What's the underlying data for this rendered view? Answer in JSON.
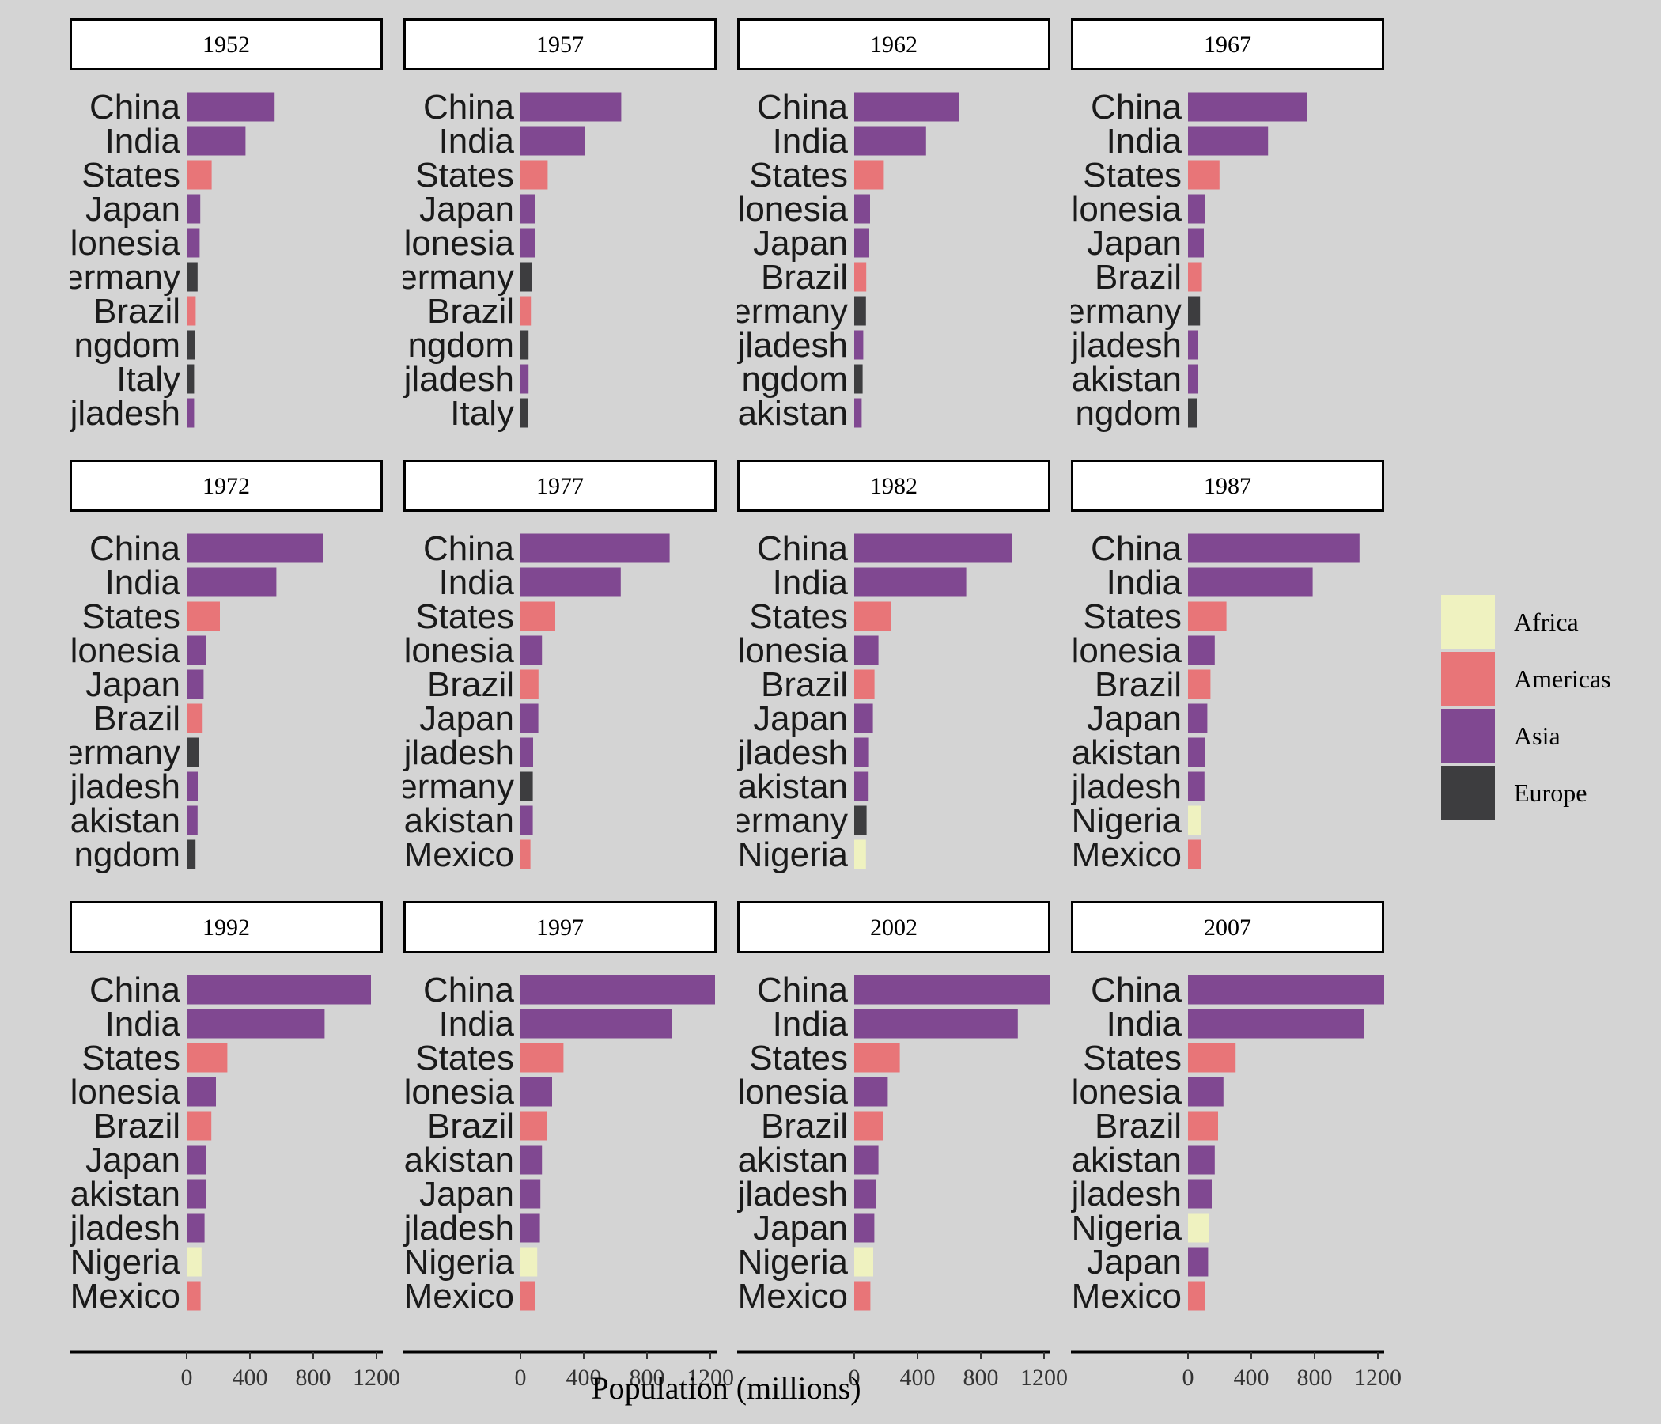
{
  "chart_data": {
    "type": "bar",
    "orientation": "horizontal",
    "facet_by": "year",
    "xlabel": "Population (millions)",
    "xlim": [
      0,
      1400
    ],
    "xticks": [
      0,
      400,
      800,
      1200
    ],
    "xtick_labels": [
      "0",
      "400",
      "800",
      "1200"
    ],
    "legend_position": "right",
    "colors": {
      "Africa": "#eff2c0",
      "Americas": "#e87578",
      "Asia": "#804891",
      "Europe": "#3d3d3f"
    },
    "legend": [
      "Africa",
      "Americas",
      "Asia",
      "Europe"
    ],
    "facets": [
      {
        "year": "1952",
        "bars": [
          {
            "label": "China",
            "continent": "Asia",
            "value": 556
          },
          {
            "label": "India",
            "continent": "Asia",
            "value": 372
          },
          {
            "label": "States",
            "continent": "Americas",
            "value": 158
          },
          {
            "label": "Japan",
            "continent": "Asia",
            "value": 86
          },
          {
            "label": "lonesia",
            "continent": "Asia",
            "value": 82
          },
          {
            "label": "ermany",
            "continent": "Europe",
            "value": 69
          },
          {
            "label": "Brazil",
            "continent": "Americas",
            "value": 57
          },
          {
            "label": "ngdom",
            "continent": "Europe",
            "value": 50
          },
          {
            "label": "Italy",
            "continent": "Europe",
            "value": 47
          },
          {
            "label": "jladesh",
            "continent": "Asia",
            "value": 47
          }
        ]
      },
      {
        "year": "1957",
        "bars": [
          {
            "label": "China",
            "continent": "Asia",
            "value": 637
          },
          {
            "label": "India",
            "continent": "Asia",
            "value": 409
          },
          {
            "label": "States",
            "continent": "Americas",
            "value": 172
          },
          {
            "label": "Japan",
            "continent": "Asia",
            "value": 91
          },
          {
            "label": "lonesia",
            "continent": "Asia",
            "value": 90
          },
          {
            "label": "ermany",
            "continent": "Europe",
            "value": 71
          },
          {
            "label": "Brazil",
            "continent": "Americas",
            "value": 66
          },
          {
            "label": "ngdom",
            "continent": "Europe",
            "value": 51
          },
          {
            "label": "jladesh",
            "continent": "Asia",
            "value": 51
          },
          {
            "label": "Italy",
            "continent": "Europe",
            "value": 49
          }
        ]
      },
      {
        "year": "1962",
        "bars": [
          {
            "label": "China",
            "continent": "Asia",
            "value": 665
          },
          {
            "label": "India",
            "continent": "Asia",
            "value": 454
          },
          {
            "label": "States",
            "continent": "Americas",
            "value": 187
          },
          {
            "label": "lonesia",
            "continent": "Asia",
            "value": 100
          },
          {
            "label": "Japan",
            "continent": "Asia",
            "value": 95
          },
          {
            "label": "Brazil",
            "continent": "Americas",
            "value": 76
          },
          {
            "label": "ermany",
            "continent": "Europe",
            "value": 74
          },
          {
            "label": "jladesh",
            "continent": "Asia",
            "value": 57
          },
          {
            "label": "ngdom",
            "continent": "Europe",
            "value": 53
          },
          {
            "label": "akistan",
            "continent": "Asia",
            "value": 47
          }
        ]
      },
      {
        "year": "1967",
        "bars": [
          {
            "label": "China",
            "continent": "Asia",
            "value": 754
          },
          {
            "label": "India",
            "continent": "Asia",
            "value": 506
          },
          {
            "label": "States",
            "continent": "Americas",
            "value": 199
          },
          {
            "label": "lonesia",
            "continent": "Asia",
            "value": 110
          },
          {
            "label": "Japan",
            "continent": "Asia",
            "value": 100
          },
          {
            "label": "Brazil",
            "continent": "Americas",
            "value": 88
          },
          {
            "label": "ermany",
            "continent": "Europe",
            "value": 76
          },
          {
            "label": "jladesh",
            "continent": "Asia",
            "value": 63
          },
          {
            "label": "akistan",
            "continent": "Asia",
            "value": 60
          },
          {
            "label": "ngdom",
            "continent": "Europe",
            "value": 55
          }
        ]
      },
      {
        "year": "1972",
        "bars": [
          {
            "label": "China",
            "continent": "Asia",
            "value": 862
          },
          {
            "label": "India",
            "continent": "Asia",
            "value": 567
          },
          {
            "label": "States",
            "continent": "Americas",
            "value": 210
          },
          {
            "label": "lonesia",
            "continent": "Asia",
            "value": 121
          },
          {
            "label": "Japan",
            "continent": "Asia",
            "value": 107
          },
          {
            "label": "Brazil",
            "continent": "Americas",
            "value": 101
          },
          {
            "label": "ermany",
            "continent": "Europe",
            "value": 79
          },
          {
            "label": "jladesh",
            "continent": "Asia",
            "value": 70
          },
          {
            "label": "akistan",
            "continent": "Asia",
            "value": 69
          },
          {
            "label": "ngdom",
            "continent": "Europe",
            "value": 56
          }
        ]
      },
      {
        "year": "1977",
        "bars": [
          {
            "label": "China",
            "continent": "Asia",
            "value": 943
          },
          {
            "label": "India",
            "continent": "Asia",
            "value": 634
          },
          {
            "label": "States",
            "continent": "Americas",
            "value": 220
          },
          {
            "label": "lonesia",
            "continent": "Asia",
            "value": 136
          },
          {
            "label": "Brazil",
            "continent": "Americas",
            "value": 114
          },
          {
            "label": "Japan",
            "continent": "Asia",
            "value": 113
          },
          {
            "label": "jladesh",
            "continent": "Asia",
            "value": 80
          },
          {
            "label": "ermany",
            "continent": "Europe",
            "value": 78
          },
          {
            "label": "akistan",
            "continent": "Asia",
            "value": 78
          },
          {
            "label": "Mexico",
            "continent": "Americas",
            "value": 63
          }
        ]
      },
      {
        "year": "1982",
        "bars": [
          {
            "label": "China",
            "continent": "Asia",
            "value": 1000
          },
          {
            "label": "India",
            "continent": "Asia",
            "value": 708
          },
          {
            "label": "States",
            "continent": "Americas",
            "value": 232
          },
          {
            "label": "lonesia",
            "continent": "Asia",
            "value": 153
          },
          {
            "label": "Brazil",
            "continent": "Americas",
            "value": 128
          },
          {
            "label": "Japan",
            "continent": "Asia",
            "value": 118
          },
          {
            "label": "jladesh",
            "continent": "Asia",
            "value": 93
          },
          {
            "label": "akistan",
            "continent": "Asia",
            "value": 91
          },
          {
            "label": "ermany",
            "continent": "Europe",
            "value": 78
          },
          {
            "label": "Nigeria",
            "continent": "Africa",
            "value": 74
          }
        ]
      },
      {
        "year": "1987",
        "bars": [
          {
            "label": "China",
            "continent": "Asia",
            "value": 1084
          },
          {
            "label": "India",
            "continent": "Asia",
            "value": 788
          },
          {
            "label": "States",
            "continent": "Americas",
            "value": 243
          },
          {
            "label": "lonesia",
            "continent": "Asia",
            "value": 169
          },
          {
            "label": "Brazil",
            "continent": "Americas",
            "value": 142
          },
          {
            "label": "Japan",
            "continent": "Asia",
            "value": 122
          },
          {
            "label": "akistan",
            "continent": "Asia",
            "value": 106
          },
          {
            "label": "jladesh",
            "continent": "Asia",
            "value": 104
          },
          {
            "label": "Nigeria",
            "continent": "Africa",
            "value": 82
          },
          {
            "label": "Mexico",
            "continent": "Americas",
            "value": 80
          }
        ]
      },
      {
        "year": "1992",
        "bars": [
          {
            "label": "China",
            "continent": "Asia",
            "value": 1165
          },
          {
            "label": "India",
            "continent": "Asia",
            "value": 872
          },
          {
            "label": "States",
            "continent": "Americas",
            "value": 257
          },
          {
            "label": "lonesia",
            "continent": "Asia",
            "value": 185
          },
          {
            "label": "Brazil",
            "continent": "Americas",
            "value": 156
          },
          {
            "label": "Japan",
            "continent": "Asia",
            "value": 124
          },
          {
            "label": "akistan",
            "continent": "Asia",
            "value": 120
          },
          {
            "label": "jladesh",
            "continent": "Asia",
            "value": 113
          },
          {
            "label": "Nigeria",
            "continent": "Africa",
            "value": 94
          },
          {
            "label": "Mexico",
            "continent": "Americas",
            "value": 88
          }
        ]
      },
      {
        "year": "1997",
        "bars": [
          {
            "label": "China",
            "continent": "Asia",
            "value": 1230
          },
          {
            "label": "India",
            "continent": "Asia",
            "value": 959
          },
          {
            "label": "States",
            "continent": "Americas",
            "value": 272
          },
          {
            "label": "lonesia",
            "continent": "Asia",
            "value": 200
          },
          {
            "label": "Brazil",
            "continent": "Americas",
            "value": 168
          },
          {
            "label": "akistan",
            "continent": "Asia",
            "value": 136
          },
          {
            "label": "Japan",
            "continent": "Asia",
            "value": 126
          },
          {
            "label": "jladesh",
            "continent": "Asia",
            "value": 123
          },
          {
            "label": "Nigeria",
            "continent": "Africa",
            "value": 106
          },
          {
            "label": "Mexico",
            "continent": "Americas",
            "value": 95
          }
        ]
      },
      {
        "year": "2002",
        "bars": [
          {
            "label": "China",
            "continent": "Asia",
            "value": 1280
          },
          {
            "label": "India",
            "continent": "Asia",
            "value": 1034
          },
          {
            "label": "States",
            "continent": "Americas",
            "value": 288
          },
          {
            "label": "lonesia",
            "continent": "Asia",
            "value": 212
          },
          {
            "label": "Brazil",
            "continent": "Americas",
            "value": 180
          },
          {
            "label": "akistan",
            "continent": "Asia",
            "value": 153
          },
          {
            "label": "jladesh",
            "continent": "Asia",
            "value": 135
          },
          {
            "label": "Japan",
            "continent": "Asia",
            "value": 127
          },
          {
            "label": "Nigeria",
            "continent": "Africa",
            "value": 120
          },
          {
            "label": "Mexico",
            "continent": "Americas",
            "value": 102
          }
        ]
      },
      {
        "year": "2007",
        "bars": [
          {
            "label": "China",
            "continent": "Asia",
            "value": 1319
          },
          {
            "label": "India",
            "continent": "Asia",
            "value": 1110
          },
          {
            "label": "States",
            "continent": "Americas",
            "value": 301
          },
          {
            "label": "lonesia",
            "continent": "Asia",
            "value": 224
          },
          {
            "label": "Brazil",
            "continent": "Americas",
            "value": 190
          },
          {
            "label": "akistan",
            "continent": "Asia",
            "value": 169
          },
          {
            "label": "jladesh",
            "continent": "Asia",
            "value": 150
          },
          {
            "label": "Nigeria",
            "continent": "Africa",
            "value": 135
          },
          {
            "label": "Japan",
            "continent": "Asia",
            "value": 127
          },
          {
            "label": "Mexico",
            "continent": "Americas",
            "value": 109
          }
        ]
      }
    ]
  }
}
